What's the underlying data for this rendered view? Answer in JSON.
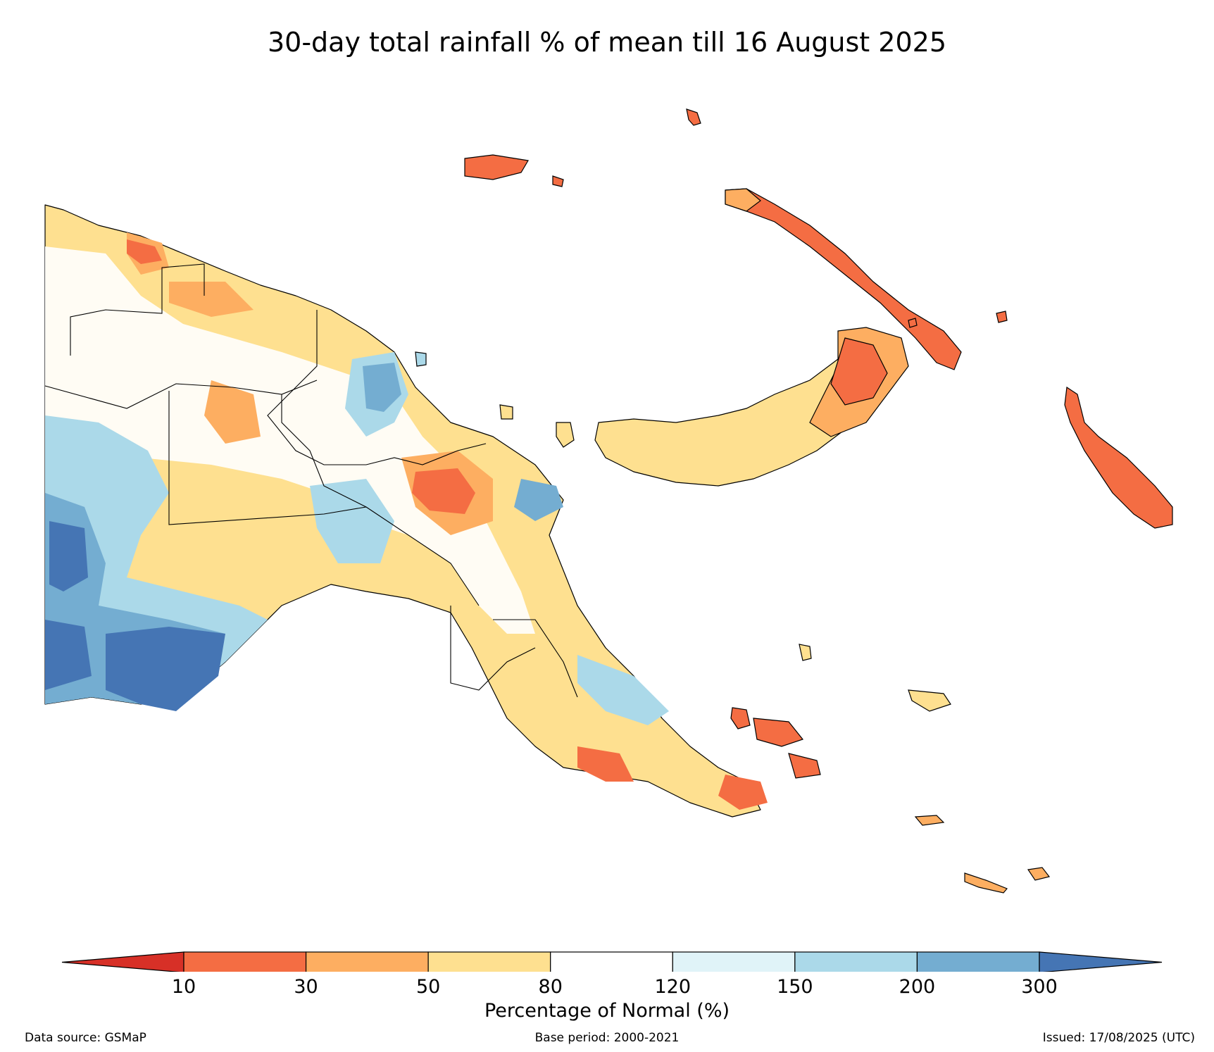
{
  "title": "30-day total rainfall % of mean till 16 August 2025",
  "colorbar": {
    "label": "Percentage of Normal (%)",
    "ticks": [
      "10",
      "30",
      "50",
      "80",
      "120",
      "150",
      "200",
      "300"
    ],
    "colors": {
      "below_10": "#d73027",
      "c10_30": "#f46d43",
      "c30_50": "#fdae61",
      "c50_80": "#fee090",
      "c80_120": "#ffffff",
      "c120_150": "#e0f3f8",
      "c150_200": "#abd9e9",
      "c200_300": "#74add1",
      "above_300": "#4575b4"
    }
  },
  "footer": {
    "data_source": "Data source: GSMaP",
    "base_period": "Base period: 2000-2021",
    "issued": "Issued: 17/08/2025 (UTC)"
  }
}
